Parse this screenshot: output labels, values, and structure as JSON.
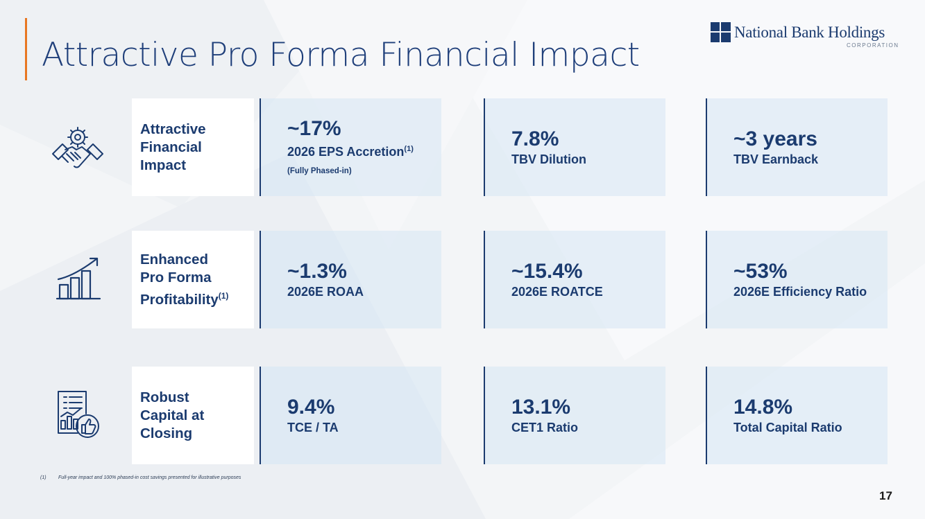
{
  "header": {
    "title": "Attractive Pro Forma Financial Impact",
    "logo_name": "National Bank Holdings",
    "logo_sub": "CORPORATION"
  },
  "rows": [
    {
      "icon": "handshake-gear-icon",
      "label_lines": [
        "Attractive",
        "Financial",
        "Impact"
      ],
      "metrics": [
        {
          "value": "~17%",
          "desc": "2026 EPS Accretion",
          "sup": "(1)",
          "note": "(Fully Phased-in)"
        },
        {
          "value": "7.8%",
          "desc": "TBV Dilution"
        },
        {
          "value": "~3 years",
          "desc": "TBV Earnback"
        }
      ]
    },
    {
      "icon": "growth-chart-icon",
      "label_lines": [
        "Enhanced",
        "Pro Forma",
        "Profitability"
      ],
      "label_sup": "(1)",
      "metrics": [
        {
          "value": "~1.3%",
          "desc": "2026E ROAA"
        },
        {
          "value": "~15.4%",
          "desc": "2026E ROATCE"
        },
        {
          "value": "~53%",
          "desc": "2026E Efficiency Ratio"
        }
      ]
    },
    {
      "icon": "report-thumbs-up-icon",
      "label_lines": [
        "Robust",
        "Capital at",
        "Closing"
      ],
      "metrics": [
        {
          "value": "9.4%",
          "desc": "TCE / TA"
        },
        {
          "value": "13.1%",
          "desc": "CET1 Ratio"
        },
        {
          "value": "14.8%",
          "desc": "Total Capital Ratio"
        }
      ]
    }
  ],
  "footnote": {
    "number": "(1)",
    "text": "Full-year impact and 100% phased-in cost savings presented for illustrative purposes"
  },
  "page_number": "17",
  "colors": {
    "accent": "#e87722",
    "navy": "#1b3b6f",
    "panel": "#d6e6f4"
  }
}
